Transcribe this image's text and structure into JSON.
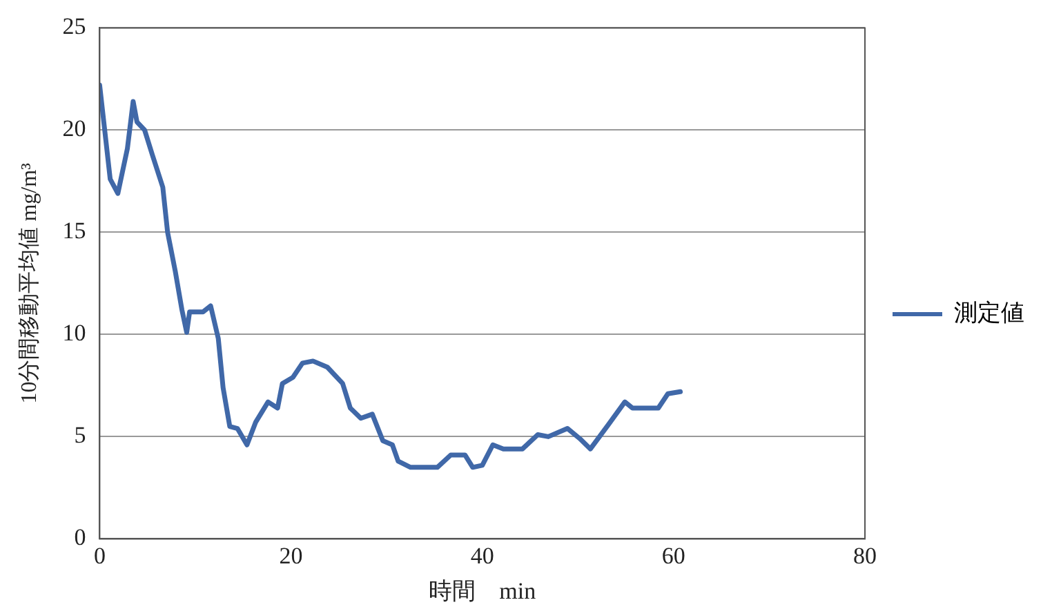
{
  "chart_data": {
    "type": "line",
    "xlabel": "時間　min",
    "ylabel": "10分間移動平均値 mg/m³",
    "xlim": [
      0,
      80
    ],
    "xticks": [
      0,
      20,
      40,
      60,
      80
    ],
    "ylim": [
      0,
      25
    ],
    "yticks": [
      0,
      5,
      10,
      15,
      20,
      25
    ],
    "grid": "y",
    "legend": "right",
    "marker": "none",
    "line_style": "solid",
    "series": [
      {
        "name": "測定値",
        "color": "#4068a8",
        "x": [
          0,
          1.1,
          1.9,
          2.9,
          3.5,
          3.9,
          4.7,
          5.5,
          6.6,
          7.1,
          7.9,
          8.6,
          9.1,
          9.4,
          10.8,
          11.6,
          12.4,
          12.9,
          13.6,
          14.4,
          15.4,
          16.3,
          17.6,
          18.6,
          19.1,
          20.2,
          21.2,
          22.3,
          23.8,
          25.4,
          26.2,
          27.3,
          28.5,
          29.6,
          30.6,
          31.2,
          32.5,
          35.3,
          36.7,
          38.2,
          39.0,
          40.0,
          41.1,
          42.2,
          44.2,
          45.8,
          46.9,
          48.9,
          50.2,
          51.3,
          53.2,
          54.9,
          55.7,
          58.4,
          59.4,
          60.7
        ],
        "values": [
          22.2,
          17.6,
          16.9,
          19.1,
          21.4,
          20.4,
          20.0,
          18.8,
          17.2,
          15.0,
          13.1,
          11.2,
          10.1,
          11.1,
          11.1,
          11.4,
          9.8,
          7.4,
          5.5,
          5.4,
          4.6,
          5.7,
          6.7,
          6.4,
          7.6,
          7.9,
          8.6,
          8.7,
          8.4,
          7.6,
          6.4,
          5.9,
          6.1,
          4.8,
          4.6,
          3.8,
          3.5,
          3.5,
          4.1,
          4.1,
          3.5,
          3.6,
          4.6,
          4.4,
          4.4,
          5.1,
          5.0,
          5.4,
          4.9,
          4.4,
          5.6,
          6.7,
          6.4,
          6.4,
          7.1,
          7.2
        ]
      }
    ]
  }
}
